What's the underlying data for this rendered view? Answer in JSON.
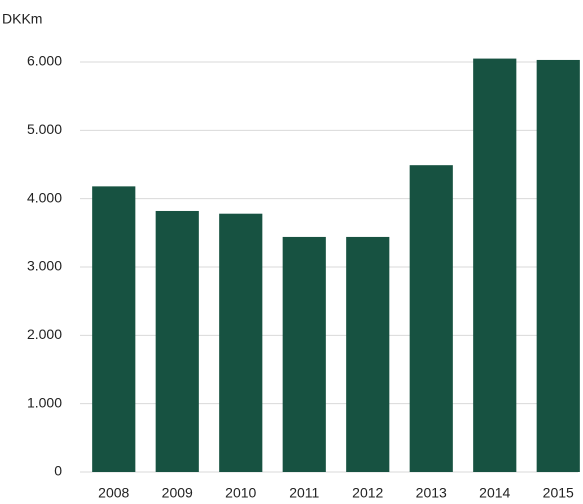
{
  "chart_data": {
    "type": "bar",
    "unit_label": "DKKm",
    "categories": [
      "2008",
      "2009",
      "2010",
      "2011",
      "2012",
      "2013",
      "2014",
      "2015"
    ],
    "values": [
      4180,
      3820,
      3780,
      3440,
      3440,
      4490,
      6050,
      6030
    ],
    "color": "#175241",
    "ylim": [
      0,
      6000
    ],
    "yticks": [
      0,
      {
        "value": 1000,
        "label": "1.000"
      },
      {
        "value": 2000,
        "label": "2.000"
      },
      {
        "value": 3000,
        "label": "3.000"
      },
      {
        "value": 4000,
        "label": "4.000"
      },
      {
        "value": 5000,
        "label": "5.000"
      },
      {
        "value": 6000,
        "label": "6.000"
      }
    ],
    "grid": true
  }
}
